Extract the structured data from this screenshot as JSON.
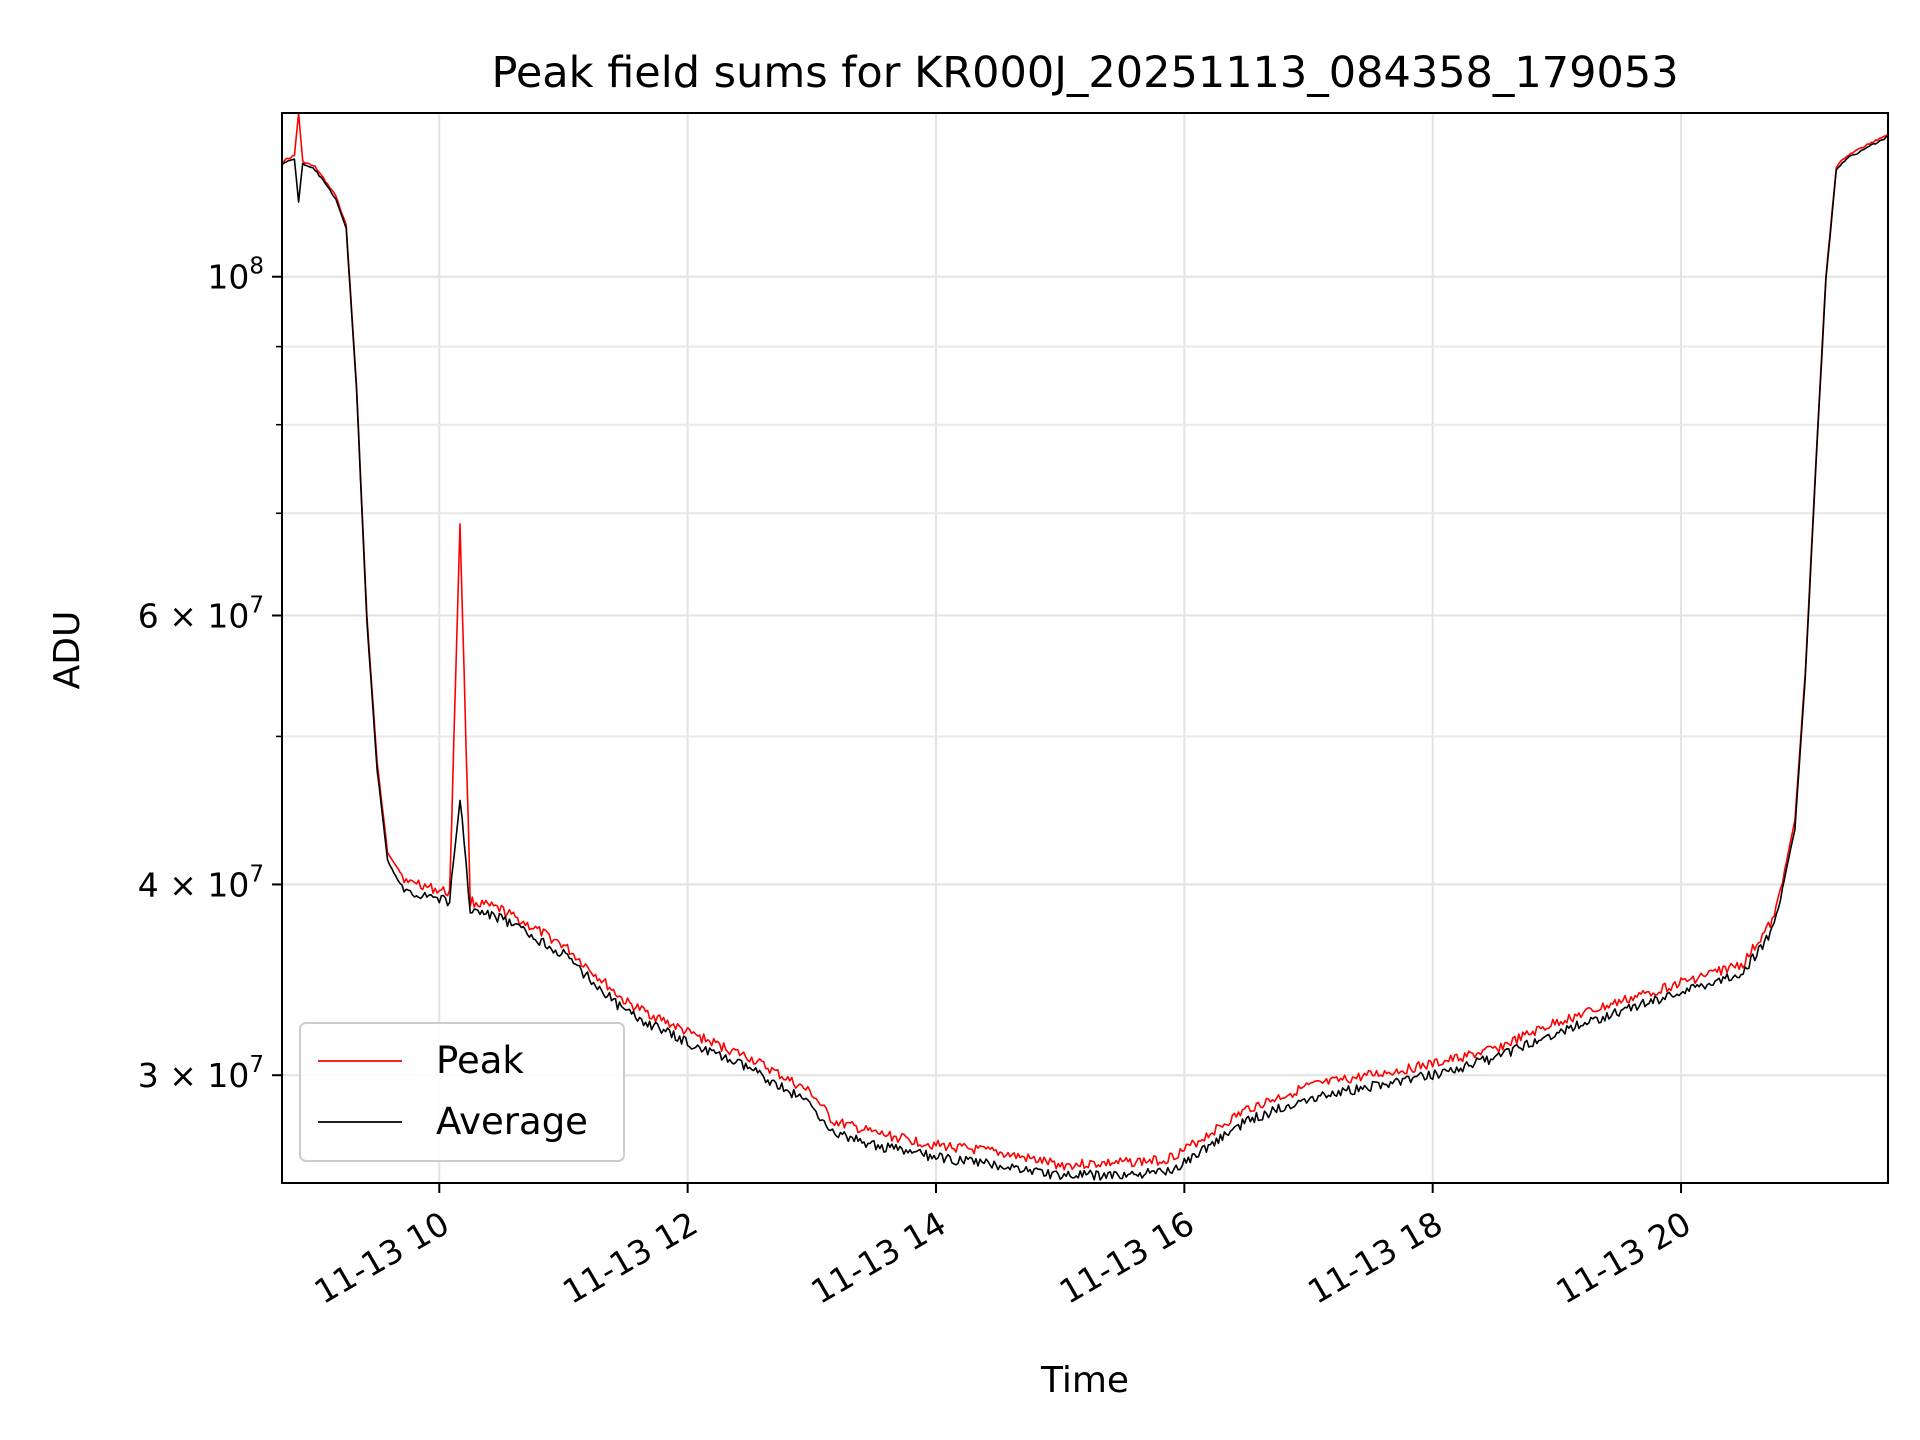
{
  "chart_data": {
    "type": "line",
    "title": "Peak field sums for KR000J_20251113_084358_179053",
    "xlabel": "Time",
    "ylabel": "ADU",
    "yscale": "log",
    "xlim": [
      "11-13 08:44",
      "11-13 21:40"
    ],
    "ylim": [
      25500000,
      128000000
    ],
    "grid": true,
    "legend_position": "lower-left",
    "x_ticks": [
      "11-13 10",
      "11-13 12",
      "11-13 14",
      "11-13 16",
      "11-13 18",
      "11-13 20"
    ],
    "y_ticks": [
      {
        "value": 30000000,
        "mant": "3",
        "exp": "7"
      },
      {
        "value": 40000000,
        "mant": "4",
        "exp": "7"
      },
      {
        "value": 60000000,
        "mant": "6",
        "exp": "7"
      },
      {
        "value": 100000000,
        "mant": "",
        "exp": "8"
      }
    ],
    "series": [
      {
        "name": "Peak",
        "color": "#ff0000",
        "x": [
          "11-13 08:44",
          "11-13 08:50",
          "11-13 08:52",
          "11-13 08:54",
          "11-13 09:00",
          "11-13 09:10",
          "11-13 09:15",
          "11-13 09:20",
          "11-13 09:25",
          "11-13 09:30",
          "11-13 09:35",
          "11-13 09:40",
          "11-13 09:45",
          "11-13 09:48",
          "11-13 09:55",
          "11-13 10:05",
          "11-13 10:10",
          "11-13 10:15",
          "11-13 10:30",
          "11-13 11:00",
          "11-13 11:30",
          "11-13 12:00",
          "11-13 12:30",
          "11-13 13:00",
          "11-13 13:10",
          "11-13 13:30",
          "11-13 14:00",
          "11-13 14:30",
          "11-13 15:00",
          "11-13 15:30",
          "11-13 15:50",
          "11-13 16:00",
          "11-13 16:30",
          "11-13 17:00",
          "11-13 17:30",
          "11-13 18:00",
          "11-13 18:30",
          "11-13 19:00",
          "11-13 19:30",
          "11-13 20:00",
          "11-13 20:30",
          "11-13 20:45",
          "11-13 20:55",
          "11-13 21:00",
          "11-13 21:05",
          "11-13 21:10",
          "11-13 21:15",
          "11-13 21:20",
          "11-13 21:30",
          "11-13 21:40"
        ],
        "y": [
          119000000,
          120000000,
          128000000,
          119000000,
          118000000,
          113000000,
          108000000,
          85000000,
          60000000,
          48000000,
          42000000,
          41000000,
          40000000,
          40200000,
          39800000,
          39500000,
          69000000,
          39000000,
          38500000,
          36500000,
          33500000,
          32000000,
          30800000,
          29200000,
          28000000,
          27500000,
          27000000,
          26700000,
          26200000,
          26300000,
          26400000,
          26800000,
          28500000,
          29500000,
          30000000,
          30500000,
          31200000,
          32500000,
          33500000,
          34500000,
          35500000,
          38000000,
          44000000,
          55000000,
          75000000,
          100000000,
          118000000,
          120000000,
          122000000,
          124000000
        ]
      },
      {
        "name": "Average",
        "color": "#000000",
        "x": [
          "11-13 08:44",
          "11-13 08:50",
          "11-13 08:52",
          "11-13 08:54",
          "11-13 09:00",
          "11-13 09:10",
          "11-13 09:15",
          "11-13 09:20",
          "11-13 09:25",
          "11-13 09:30",
          "11-13 09:35",
          "11-13 09:40",
          "11-13 09:45",
          "11-13 09:48",
          "11-13 09:55",
          "11-13 10:05",
          "11-13 10:10",
          "11-13 10:15",
          "11-13 10:30",
          "11-13 11:00",
          "11-13 11:30",
          "11-13 12:00",
          "11-13 12:30",
          "11-13 13:00",
          "11-13 13:10",
          "11-13 13:30",
          "11-13 14:00",
          "11-13 14:30",
          "11-13 15:00",
          "11-13 15:30",
          "11-13 15:50",
          "11-13 16:00",
          "11-13 16:30",
          "11-13 17:00",
          "11-13 17:30",
          "11-13 18:00",
          "11-13 18:30",
          "11-13 19:00",
          "11-13 19:30",
          "11-13 20:00",
          "11-13 20:30",
          "11-13 20:45",
          "11-13 20:55",
          "11-13 21:00",
          "11-13 21:05",
          "11-13 21:10",
          "11-13 21:15",
          "11-13 21:20",
          "11-13 21:30",
          "11-13 21:40"
        ],
        "y": [
          118500000,
          119500000,
          112000000,
          118500000,
          117500000,
          112500000,
          107500000,
          84500000,
          59500000,
          47500000,
          41500000,
          40200000,
          39500000,
          39500000,
          39300000,
          39000000,
          45500000,
          38500000,
          38000000,
          36000000,
          33000000,
          31500000,
          30300000,
          28700000,
          27500000,
          27000000,
          26500000,
          26200000,
          25800000,
          25800000,
          25900000,
          26300000,
          28000000,
          29000000,
          29500000,
          30000000,
          30800000,
          32000000,
          33000000,
          34000000,
          35000000,
          37500000,
          43500000,
          54500000,
          74500000,
          99500000,
          117500000,
          119500000,
          121500000,
          123500000
        ]
      }
    ]
  }
}
